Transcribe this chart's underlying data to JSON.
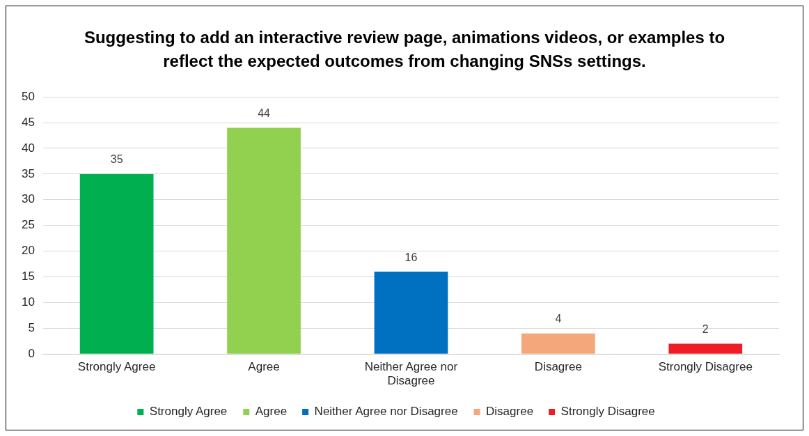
{
  "chart_data": {
    "type": "bar",
    "title": "Suggesting to add an interactive review page, animations videos, or examples to reflect the expected outcomes from changing SNSs settings.",
    "categories": [
      "Strongly Agree",
      "Agree",
      "Neither Agree nor Disagree",
      "Disagree",
      "Strongly Disagree"
    ],
    "series": [
      {
        "name": "Strongly Agree",
        "color": "#00b050",
        "values": [
          35,
          null,
          null,
          null,
          null
        ]
      },
      {
        "name": "Agree",
        "color": "#92d050",
        "values": [
          null,
          44,
          null,
          null,
          null
        ]
      },
      {
        "name": "Neither Agree nor Disagree",
        "color": "#0070c0",
        "values": [
          null,
          null,
          16,
          null,
          null
        ]
      },
      {
        "name": "Disagree",
        "color": "#f4a77a",
        "values": [
          null,
          null,
          null,
          4,
          null
        ]
      },
      {
        "name": "Strongly Disagree",
        "color": "#ee1c25",
        "values": [
          null,
          null,
          null,
          null,
          2
        ]
      }
    ],
    "ylim": [
      0,
      50
    ],
    "yticks": [
      0,
      5,
      10,
      15,
      20,
      25,
      30,
      35,
      40,
      45,
      50
    ],
    "grid": "y",
    "legend": "bottom",
    "data_labels": true
  }
}
